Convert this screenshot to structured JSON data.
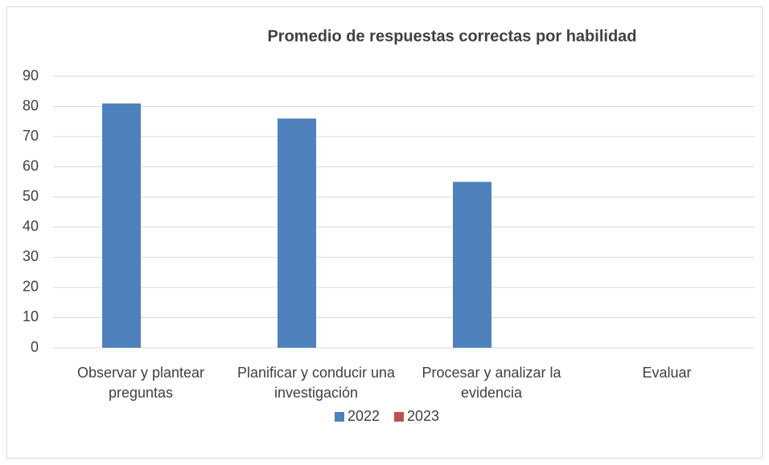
{
  "chart_data": {
    "type": "bar",
    "title": "Promedio de respuestas correctas por habilidad",
    "categories": [
      "Observar y plantear preguntas",
      "Planificar y conducir una investigación",
      "Procesar y analizar la evidencia",
      "Evaluar"
    ],
    "series": [
      {
        "name": "2022",
        "color": "#4f81bd",
        "values": [
          81,
          76,
          55,
          null
        ]
      },
      {
        "name": "2023",
        "color": "#c0504d",
        "values": [
          null,
          null,
          null,
          null
        ]
      }
    ],
    "ylim": [
      0,
      90
    ],
    "yticks": [
      0,
      10,
      20,
      30,
      40,
      50,
      60,
      70,
      80,
      90
    ],
    "grid": true,
    "legend": "bottom"
  }
}
